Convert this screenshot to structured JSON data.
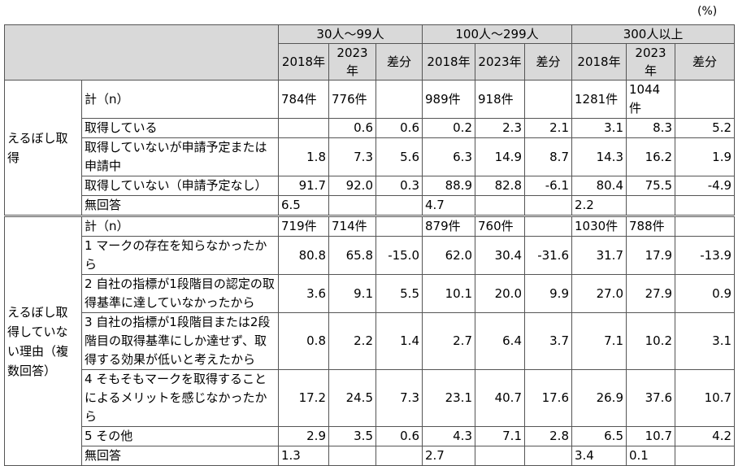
{
  "unit": "(%)",
  "header": {
    "groups": [
      "30人～99人",
      "100人～299人",
      "300人以上"
    ],
    "columns": [
      "2018年",
      "2023年",
      "差分",
      "2018年",
      "2023年",
      "差分",
      "2018年",
      "2023年",
      "差分"
    ]
  },
  "sections": [
    {
      "label": "えるぼし取得",
      "rows": [
        {
          "label": "計（n）",
          "cells": [
            "784件",
            "776件",
            null,
            "989件",
            "918件",
            null,
            "1281件",
            "1044件",
            null
          ]
        },
        {
          "label": "取得している",
          "cells": [
            null,
            "0.6",
            "0.6",
            "0.2",
            "2.3",
            "2.1",
            "3.1",
            "8.3",
            "5.2"
          ]
        },
        {
          "label": "取得していないが申請予定または申請中",
          "cells": [
            "1.8",
            "7.3",
            "5.6",
            "6.3",
            "14.9",
            "8.7",
            "14.3",
            "16.2",
            "1.9"
          ]
        },
        {
          "label": "取得していない（申請予定なし）",
          "cells": [
            "91.7",
            "92.0",
            "0.3",
            "88.9",
            "82.8",
            "-6.1",
            "80.4",
            "75.5",
            "-4.9"
          ]
        },
        {
          "label": "無回答",
          "cells": [
            "6.5",
            null,
            null,
            "4.7",
            null,
            null,
            "2.2",
            null,
            null
          ]
        }
      ]
    },
    {
      "label": "えるぼし取得していない理由（複数回答）",
      "rows": [
        {
          "label": "計（n）",
          "cells": [
            "719件",
            "714件",
            null,
            "879件",
            "760件",
            null,
            "1030件",
            "788件",
            null
          ]
        },
        {
          "label": "1 マークの存在を知らなかったから",
          "cells": [
            "80.8",
            "65.8",
            "-15.0",
            "62.0",
            "30.4",
            "-31.6",
            "31.7",
            "17.9",
            "-13.9"
          ]
        },
        {
          "label": "2 自社の指標が1段階目の認定の取得基準に達していなかったから",
          "cells": [
            "3.6",
            "9.1",
            "5.5",
            "10.1",
            "20.0",
            "9.9",
            "27.0",
            "27.9",
            "0.9"
          ]
        },
        {
          "label": "3 自社の指標が1段階目または2段階目の取得基準にしか達せず、取得する効果が低いと考えたから",
          "cells": [
            "0.8",
            "2.2",
            "1.4",
            "2.7",
            "6.4",
            "3.7",
            "7.1",
            "10.2",
            "3.1"
          ]
        },
        {
          "label": "4 そもそもマークを取得することによるメリットを感じなかったから",
          "cells": [
            "17.2",
            "24.5",
            "7.3",
            "23.1",
            "40.7",
            "17.6",
            "26.9",
            "37.6",
            "10.7"
          ]
        },
        {
          "label": "5 その他",
          "cells": [
            "2.9",
            "3.5",
            "0.6",
            "4.3",
            "7.1",
            "2.8",
            "6.5",
            "10.7",
            "4.2"
          ]
        },
        {
          "label": "無回答",
          "cells": [
            "1.3",
            null,
            null,
            "2.7",
            null,
            null,
            "3.4",
            "0.1",
            null
          ]
        }
      ]
    }
  ]
}
